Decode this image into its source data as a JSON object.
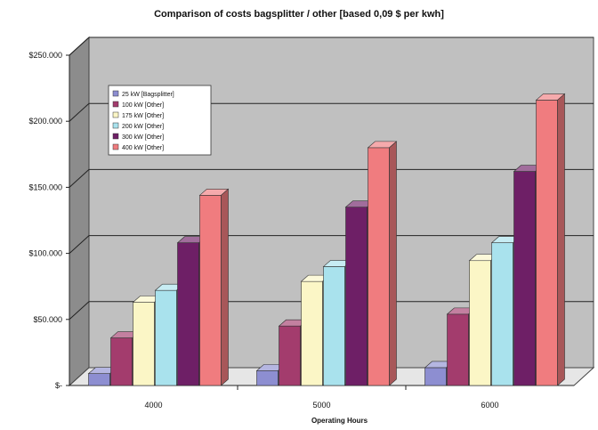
{
  "chart_data": {
    "type": "bar",
    "title": "Comparison of costs bagsplitter / other [based 0,09 $ per kwh]",
    "xlabel": "Operating Hours",
    "ylabel": "",
    "categories": [
      "4000",
      "5000",
      "6000"
    ],
    "ylim": [
      0,
      250000
    ],
    "yticks": [
      {
        "value": 0,
        "label": "$-"
      },
      {
        "value": 50000,
        "label": "$50.000"
      },
      {
        "value": 100000,
        "label": "$100.000"
      },
      {
        "value": 150000,
        "label": "$150.000"
      },
      {
        "value": 200000,
        "label": "$200.000"
      },
      {
        "value": 250000,
        "label": "$250.000"
      }
    ],
    "grid": true,
    "legend_position": "top-left",
    "series": [
      {
        "name": "25   kW [Bagsplitter]",
        "color": "#8d8ed1",
        "values": [
          9000,
          11200,
          13500
        ]
      },
      {
        "name": "100 kW [Other]",
        "color": "#a33c6d",
        "values": [
          36000,
          45000,
          54000
        ]
      },
      {
        "name": "175 kW [Other]",
        "color": "#fbf6c6",
        "values": [
          63000,
          78750,
          94500
        ]
      },
      {
        "name": "200 kW [Other]",
        "color": "#a9e2ed",
        "values": [
          72000,
          90000,
          108000
        ]
      },
      {
        "name": "300 kW [Other]",
        "color": "#6e1f66",
        "values": [
          108000,
          135000,
          162000
        ]
      },
      {
        "name": "400 kW [Other]",
        "color": "#f07c7f",
        "values": [
          144000,
          180000,
          216000
        ]
      }
    ]
  }
}
